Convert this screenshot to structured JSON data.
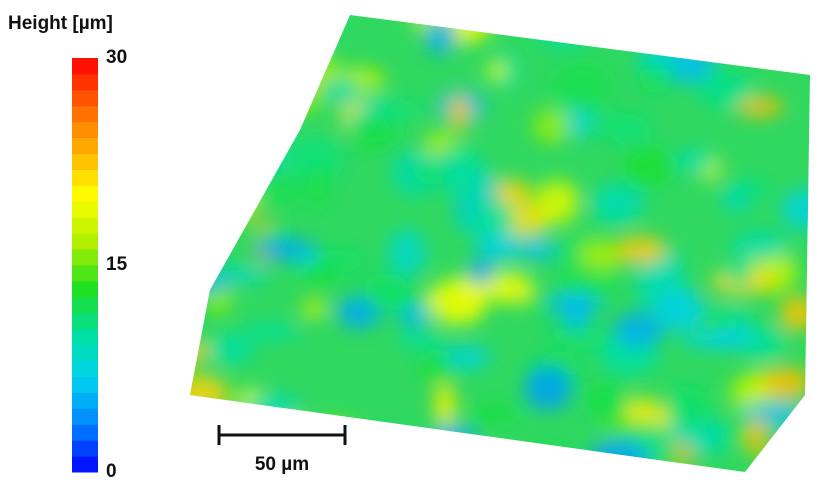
{
  "chart_data": {
    "type": "surface",
    "colorbar_title": "Height [µm]",
    "zlim": [
      0,
      30
    ],
    "zticks": [
      0,
      15,
      30
    ],
    "colormap": [
      "#0000ff",
      "#0080ff",
      "#00d0f0",
      "#00e0a0",
      "#20e020",
      "#b0f000",
      "#ffff00",
      "#ffb000",
      "#ff6000",
      "#ff0000"
    ],
    "scale_bar_label": "50 µm"
  }
}
